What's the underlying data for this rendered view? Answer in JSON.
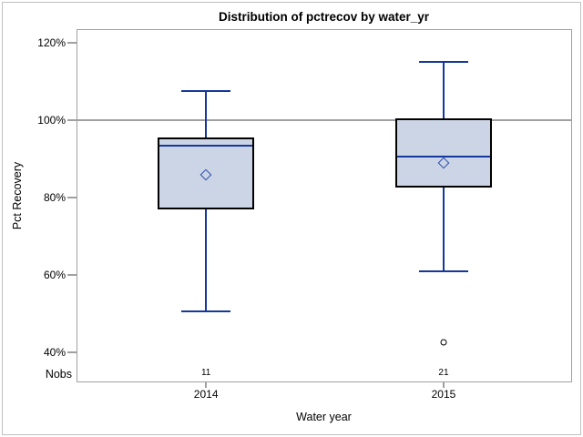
{
  "chart_data": {
    "type": "boxplot",
    "title": "Distribution of pctrecov by water_yr",
    "xlabel": "Water year",
    "ylabel": "Pct Recovery",
    "ylim": [
      40,
      120
    ],
    "yticks": [
      40,
      60,
      80,
      100,
      120
    ],
    "ytick_labels": [
      "40%",
      "60%",
      "80%",
      "100%",
      "120%"
    ],
    "grid": false,
    "refline_y": 100,
    "nobs_label": "Nobs",
    "categories": [
      "2014",
      "2015"
    ],
    "groups": [
      {
        "label": "2014",
        "nobs": "11",
        "whisker_low": 50.5,
        "q1": 77,
        "median": 93.5,
        "q3": 95.5,
        "whisker_high": 107.5,
        "mean": 86,
        "outliers": []
      },
      {
        "label": "2015",
        "nobs": "21",
        "whisker_low": 61,
        "q1": 82.5,
        "median": 90.5,
        "q3": 100.5,
        "whisker_high": 115,
        "mean": 89,
        "outliers": [
          42.5
        ]
      }
    ],
    "colors": {
      "box_fill": "#ccd5e6",
      "box_border": "#000000",
      "whisker_line": "#15389b",
      "median_line": "#15389b",
      "mean_marker": "#2a4ca8",
      "outlier_marker": "#000000",
      "refline": "#a0a0a0",
      "frame": "#a0a0a0",
      "text": "#000000",
      "image_border": "#c0c0c0"
    }
  }
}
